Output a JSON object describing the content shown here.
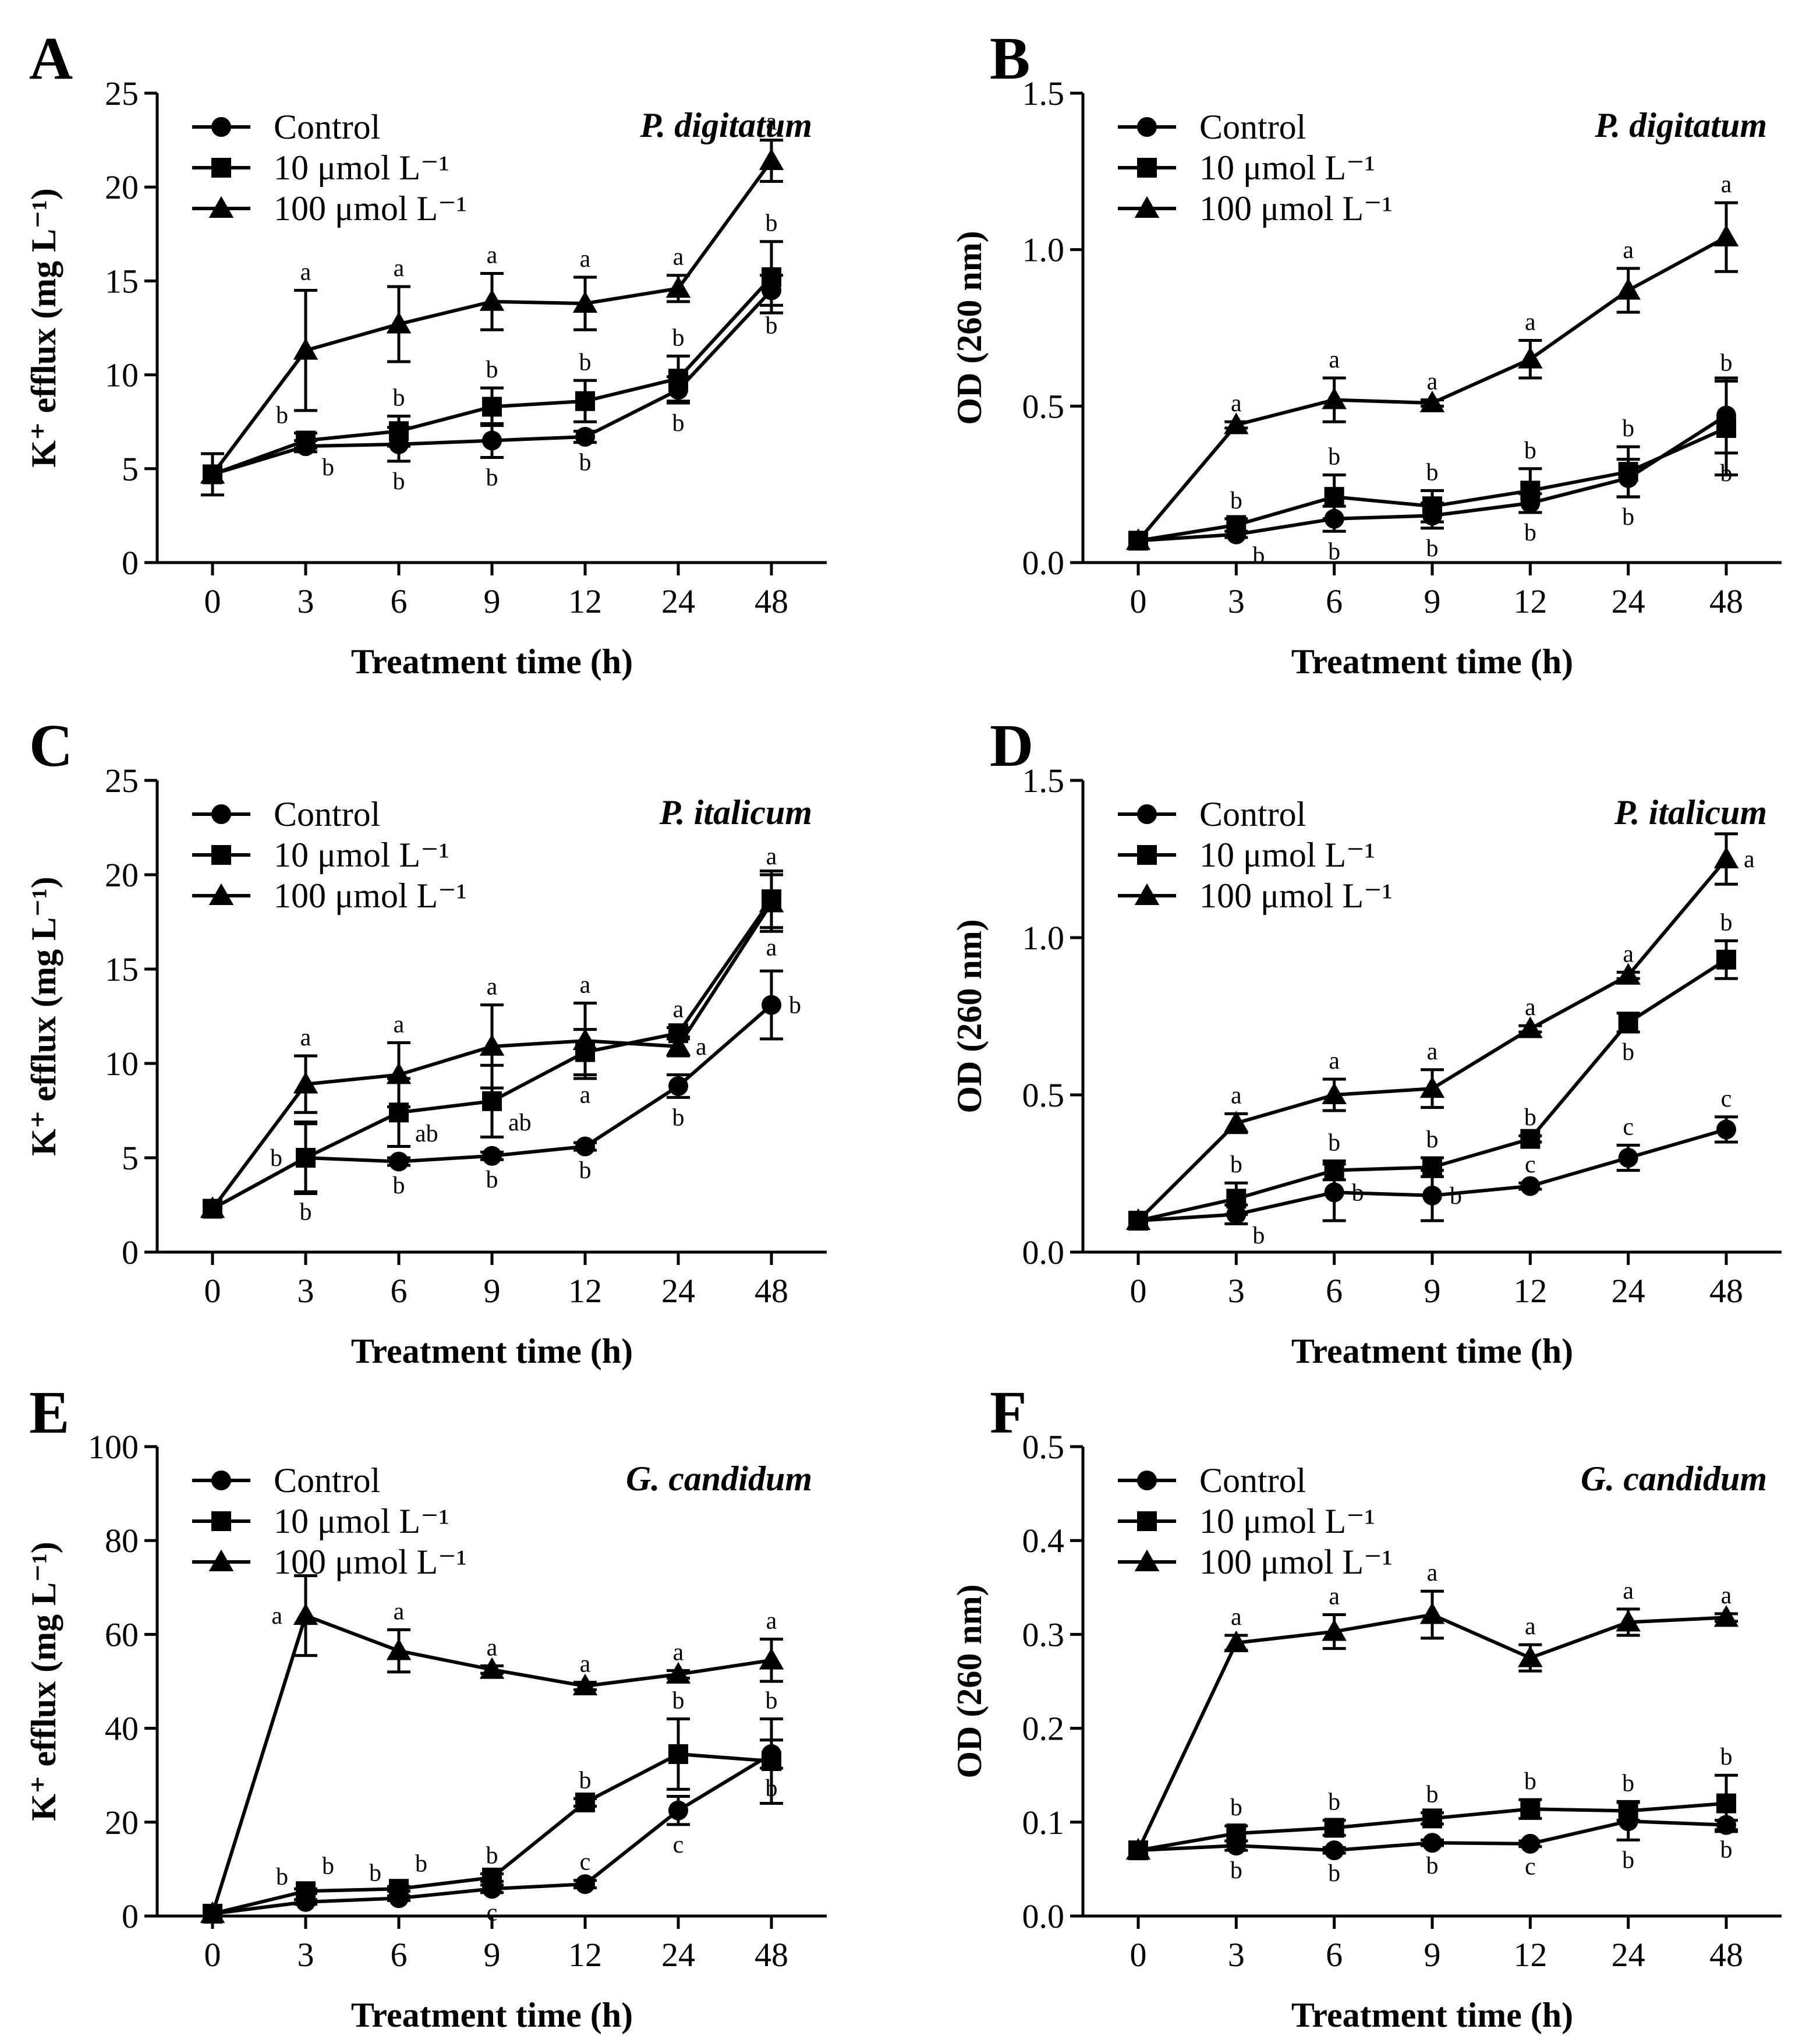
{
  "figure": {
    "legend_labels": [
      "Control",
      "10 μmol L⁻¹",
      "100 μmol L⁻¹"
    ],
    "marker_shapes": [
      "circle",
      "square",
      "triangle"
    ],
    "line_color": "#000000",
    "background": "#ffffff"
  },
  "chart_data": [
    {
      "panel": "A",
      "type": "line",
      "title": "P. digitatum",
      "xlabel": "Treatment time (h)",
      "ylabel": "K⁺ efflux (mg L⁻¹)",
      "ylabel_bold": false,
      "categories": [
        "0",
        "3",
        "6",
        "9",
        "12",
        "24",
        "48"
      ],
      "ylim": [
        0,
        25
      ],
      "yticks": [
        "0",
        "5",
        "10",
        "15",
        "20",
        "25"
      ],
      "series": [
        {
          "name": "Control",
          "marker": "circle",
          "values": [
            4.7,
            6.2,
            6.3,
            6.5,
            6.7,
            9.2,
            14.5
          ],
          "errors": [
            0,
            0.3,
            0.9,
            0.9,
            0.3,
            0.7,
            0.8
          ],
          "letters": [
            "",
            "b",
            "b",
            "b",
            "b",
            "b",
            "b"
          ],
          "letter_pos": [
            "",
            "below-right",
            "below",
            "below",
            "below",
            "below",
            "below"
          ]
        },
        {
          "name": "10 μmol L⁻¹",
          "marker": "square",
          "values": [
            4.7,
            6.5,
            7.0,
            8.3,
            8.6,
            9.8,
            15.2
          ],
          "errors": [
            1.1,
            0.4,
            0.8,
            1.0,
            1.1,
            1.2,
            1.9
          ],
          "letters": [
            "",
            "b",
            "b",
            "b",
            "b",
            "b",
            "b"
          ],
          "letter_pos": [
            "",
            "above-left",
            "above",
            "above",
            "above",
            "above",
            "above"
          ]
        },
        {
          "name": "100 μmol L⁻¹",
          "marker": "triangle",
          "values": [
            4.7,
            11.3,
            12.7,
            13.9,
            13.8,
            14.6,
            21.4
          ],
          "errors": [
            0,
            3.2,
            2.0,
            1.5,
            1.4,
            0.7,
            1.1
          ],
          "letters": [
            "",
            "a",
            "a",
            "a",
            "a",
            "a",
            "a"
          ],
          "letter_pos": [
            "",
            "above",
            "above",
            "above",
            "above",
            "above",
            "above"
          ]
        }
      ]
    },
    {
      "panel": "B",
      "type": "line",
      "title": "P. digitatum",
      "xlabel": "Treatment time (h)",
      "ylabel": "OD (260 nm)",
      "ylabel_bold": true,
      "categories": [
        "0",
        "3",
        "6",
        "9",
        "12",
        "24",
        "48"
      ],
      "ylim": [
        0,
        1.5
      ],
      "yticks": [
        "0.0",
        "0.5",
        "1.0",
        "1.5"
      ],
      "series": [
        {
          "name": "Control",
          "marker": "circle",
          "values": [
            0.07,
            0.09,
            0.14,
            0.15,
            0.19,
            0.27,
            0.47
          ],
          "errors": [
            0,
            0.01,
            0.04,
            0.04,
            0.03,
            0.06,
            0.12
          ],
          "letters": [
            "",
            "b",
            "b",
            "b",
            "b",
            "b",
            "b"
          ],
          "letter_pos": [
            "",
            "below-right",
            "below",
            "below",
            "below",
            "below",
            "below"
          ]
        },
        {
          "name": "10 μmol L⁻¹",
          "marker": "square",
          "values": [
            0.07,
            0.12,
            0.21,
            0.18,
            0.23,
            0.29,
            0.43
          ],
          "errors": [
            0,
            0.02,
            0.07,
            0.05,
            0.07,
            0.08,
            0.15
          ],
          "letters": [
            "",
            "b",
            "b",
            "b",
            "b",
            "b",
            "b"
          ],
          "letter_pos": [
            "",
            "above",
            "above",
            "above",
            "above",
            "above",
            "above"
          ]
        },
        {
          "name": "100 μmol L⁻¹",
          "marker": "triangle",
          "values": [
            0.07,
            0.44,
            0.52,
            0.51,
            0.65,
            0.87,
            1.04
          ],
          "errors": [
            0,
            0.01,
            0.07,
            0.01,
            0.06,
            0.07,
            0.11
          ],
          "letters": [
            "",
            "a",
            "a",
            "a",
            "a",
            "a",
            "a"
          ],
          "letter_pos": [
            "",
            "above",
            "above",
            "above",
            "above",
            "above",
            "above"
          ]
        }
      ]
    },
    {
      "panel": "C",
      "type": "line",
      "title": "P. italicum",
      "xlabel": "Treatment time (h)",
      "ylabel": "K⁺ efflux (mg L⁻¹)",
      "ylabel_bold": true,
      "categories": [
        "0",
        "3",
        "6",
        "9",
        "12",
        "24",
        "48"
      ],
      "ylim": [
        0,
        25
      ],
      "yticks": [
        "0",
        "5",
        "10",
        "15",
        "20",
        "25"
      ],
      "series": [
        {
          "name": "Control",
          "marker": "circle",
          "values": [
            2.3,
            5.0,
            4.8,
            5.1,
            5.6,
            8.8,
            13.1
          ],
          "errors": [
            0,
            1.8,
            0.2,
            0.2,
            0.2,
            0.6,
            1.8
          ],
          "letters": [
            "",
            "b",
            "b",
            "b",
            "b",
            "b",
            "b"
          ],
          "letter_pos": [
            "",
            "below",
            "below",
            "below",
            "below",
            "below",
            "right"
          ]
        },
        {
          "name": "10 μmol L⁻¹",
          "marker": "square",
          "values": [
            2.3,
            5.0,
            7.4,
            8.0,
            10.6,
            11.6,
            18.7
          ],
          "errors": [
            0,
            1.9,
            1.8,
            1.9,
            1.2,
            0.3,
            1.5
          ],
          "letters": [
            "",
            "b",
            "ab",
            "ab",
            "a",
            "a",
            "a"
          ],
          "letter_pos": [
            "",
            "left",
            "below-right",
            "below-right",
            "below",
            "above",
            "below"
          ]
        },
        {
          "name": "100 μmol L⁻¹",
          "marker": "triangle",
          "values": [
            2.3,
            8.9,
            9.4,
            10.9,
            11.2,
            10.9,
            18.5
          ],
          "errors": [
            0,
            1.5,
            1.7,
            2.2,
            2.0,
            0.5,
            1.5
          ],
          "letters": [
            "",
            "a",
            "a",
            "a",
            "a",
            "a",
            "a"
          ],
          "letter_pos": [
            "",
            "above",
            "above",
            "above",
            "above",
            "right",
            "above"
          ]
        }
      ]
    },
    {
      "panel": "D",
      "type": "line",
      "title": "P. italicum",
      "xlabel": "Treatment time (h)",
      "ylabel": "OD (260 nm)",
      "ylabel_bold": true,
      "categories": [
        "0",
        "3",
        "6",
        "9",
        "12",
        "24",
        "48"
      ],
      "ylim": [
        0,
        1.5
      ],
      "yticks": [
        "0.0",
        "0.5",
        "1.0",
        "1.5"
      ],
      "series": [
        {
          "name": "Control",
          "marker": "circle",
          "values": [
            0.1,
            0.12,
            0.19,
            0.18,
            0.21,
            0.3,
            0.39
          ],
          "errors": [
            0,
            0.03,
            0.09,
            0.08,
            0.01,
            0.04,
            0.04
          ],
          "letters": [
            "",
            "b",
            "b",
            "b",
            "c",
            "c",
            "c"
          ],
          "letter_pos": [
            "",
            "below-right",
            "right",
            "right",
            "above",
            "above",
            "above"
          ]
        },
        {
          "name": "10 μmol L⁻¹",
          "marker": "square",
          "values": [
            0.1,
            0.17,
            0.26,
            0.27,
            0.36,
            0.73,
            0.93
          ],
          "errors": [
            0,
            0.05,
            0.03,
            0.03,
            0.01,
            0.03,
            0.06
          ],
          "letters": [
            "",
            "b",
            "b",
            "b",
            "b",
            "b",
            "b"
          ],
          "letter_pos": [
            "",
            "above",
            "above",
            "above",
            "above",
            "below",
            "above"
          ]
        },
        {
          "name": "100 μmol L⁻¹",
          "marker": "triangle",
          "values": [
            0.1,
            0.41,
            0.5,
            0.52,
            0.71,
            0.88,
            1.25
          ],
          "errors": [
            0,
            0.03,
            0.05,
            0.06,
            0.01,
            0.01,
            0.08
          ],
          "letters": [
            "",
            "a",
            "a",
            "a",
            "a",
            "a",
            "a"
          ],
          "letter_pos": [
            "",
            "above",
            "above",
            "above",
            "above",
            "above",
            "right"
          ]
        }
      ]
    },
    {
      "panel": "E",
      "type": "line",
      "title": "G. candidum",
      "xlabel": "Treatment time (h)",
      "ylabel": "K⁺ efflux (mg L⁻¹)",
      "ylabel_bold": true,
      "categories": [
        "0",
        "3",
        "6",
        "9",
        "12",
        "24",
        "48"
      ],
      "ylim": [
        0,
        100
      ],
      "yticks": [
        "0",
        "20",
        "40",
        "60",
        "80",
        "100"
      ],
      "series": [
        {
          "name": "Control",
          "marker": "circle",
          "values": [
            0.5,
            3.0,
            3.8,
            5.8,
            6.8,
            22.5,
            34.5
          ],
          "errors": [
            0,
            0.5,
            0.5,
            0.8,
            0.8,
            3.0,
            3.0
          ],
          "letters": [
            "",
            "b",
            "b",
            "c",
            "c",
            "c",
            "b"
          ],
          "letter_pos": [
            "",
            "above-left",
            "above-left",
            "below",
            "above",
            "below",
            "below"
          ]
        },
        {
          "name": "10 μmol L⁻¹",
          "marker": "square",
          "values": [
            0.5,
            5.3,
            5.8,
            8.2,
            24.2,
            34.5,
            33.0
          ],
          "errors": [
            0,
            0.5,
            0.5,
            0.8,
            0.8,
            7.5,
            9.0
          ],
          "letters": [
            "",
            "b",
            "b",
            "b",
            "b",
            "b",
            "b"
          ],
          "letter_pos": [
            "",
            "above-right",
            "above-right",
            "above",
            "above",
            "above",
            "above"
          ]
        },
        {
          "name": "100 μmol L⁻¹",
          "marker": "triangle",
          "values": [
            0.5,
            64.0,
            56.5,
            52.5,
            49.0,
            51.5,
            54.5
          ],
          "errors": [
            0,
            8.5,
            4.5,
            0.8,
            0.8,
            0.8,
            4.5
          ],
          "letters": [
            "",
            "a",
            "a",
            "a",
            "a",
            "a",
            "a"
          ],
          "letter_pos": [
            "",
            "left",
            "above",
            "above",
            "above",
            "above",
            "above"
          ]
        }
      ]
    },
    {
      "panel": "F",
      "type": "line",
      "title": "G. candidum",
      "xlabel": "Treatment time (h)",
      "ylabel": "OD (260 nm)",
      "ylabel_bold": true,
      "categories": [
        "0",
        "3",
        "6",
        "9",
        "12",
        "24",
        "48"
      ],
      "ylim": [
        0,
        0.5
      ],
      "yticks": [
        "0.0",
        "0.1",
        "0.2",
        "0.3",
        "0.4",
        "0.5"
      ],
      "series": [
        {
          "name": "Control",
          "marker": "circle",
          "values": [
            0.07,
            0.075,
            0.07,
            0.078,
            0.077,
            0.101,
            0.097
          ],
          "errors": [
            0,
            0.005,
            0.003,
            0.003,
            0.003,
            0.02,
            0.005
          ],
          "letters": [
            "",
            "b",
            "b",
            "b",
            "c",
            "b",
            "b"
          ],
          "letter_pos": [
            "",
            "below",
            "below",
            "below",
            "below",
            "below",
            "below"
          ]
        },
        {
          "name": "10 μmol L⁻¹",
          "marker": "square",
          "values": [
            0.07,
            0.088,
            0.094,
            0.104,
            0.114,
            0.112,
            0.12
          ],
          "errors": [
            0,
            0.008,
            0.008,
            0.006,
            0.01,
            0.01,
            0.03
          ],
          "letters": [
            "",
            "b",
            "b",
            "b",
            "b",
            "b",
            "b"
          ],
          "letter_pos": [
            "",
            "above",
            "above",
            "above",
            "above",
            "above",
            "above"
          ]
        },
        {
          "name": "100 μmol L⁻¹",
          "marker": "triangle",
          "values": [
            0.07,
            0.291,
            0.303,
            0.321,
            0.275,
            0.313,
            0.318
          ],
          "errors": [
            0,
            0.008,
            0.018,
            0.025,
            0.014,
            0.014,
            0.004
          ],
          "letters": [
            "",
            "a",
            "a",
            "a",
            "a",
            "a",
            "a"
          ],
          "letter_pos": [
            "",
            "above",
            "above",
            "above",
            "above",
            "above",
            "above"
          ]
        }
      ]
    }
  ]
}
